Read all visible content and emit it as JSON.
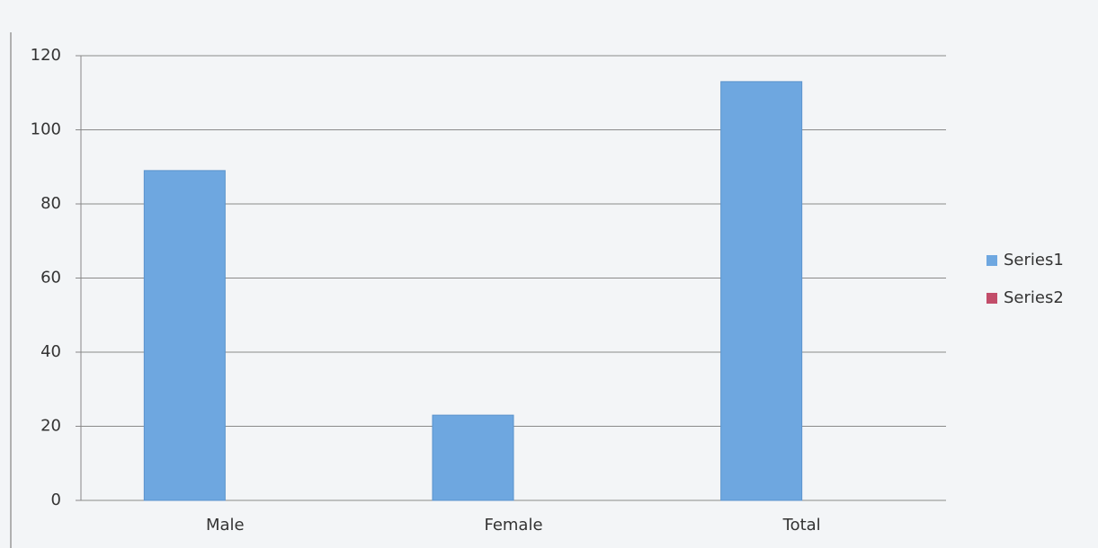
{
  "chart_data": {
    "type": "bar",
    "categories": [
      "Male",
      "Female",
      "Total"
    ],
    "series": [
      {
        "name": "Series1",
        "color": "#6ea7e0",
        "values": [
          89,
          23,
          113
        ]
      },
      {
        "name": "Series2",
        "color": "#c24d6a",
        "values": [
          null,
          null,
          null
        ]
      }
    ],
    "ylim": [
      0,
      120
    ],
    "yticks": [
      0,
      20,
      40,
      60,
      80,
      100,
      120
    ],
    "grid": true,
    "legend": "right"
  }
}
